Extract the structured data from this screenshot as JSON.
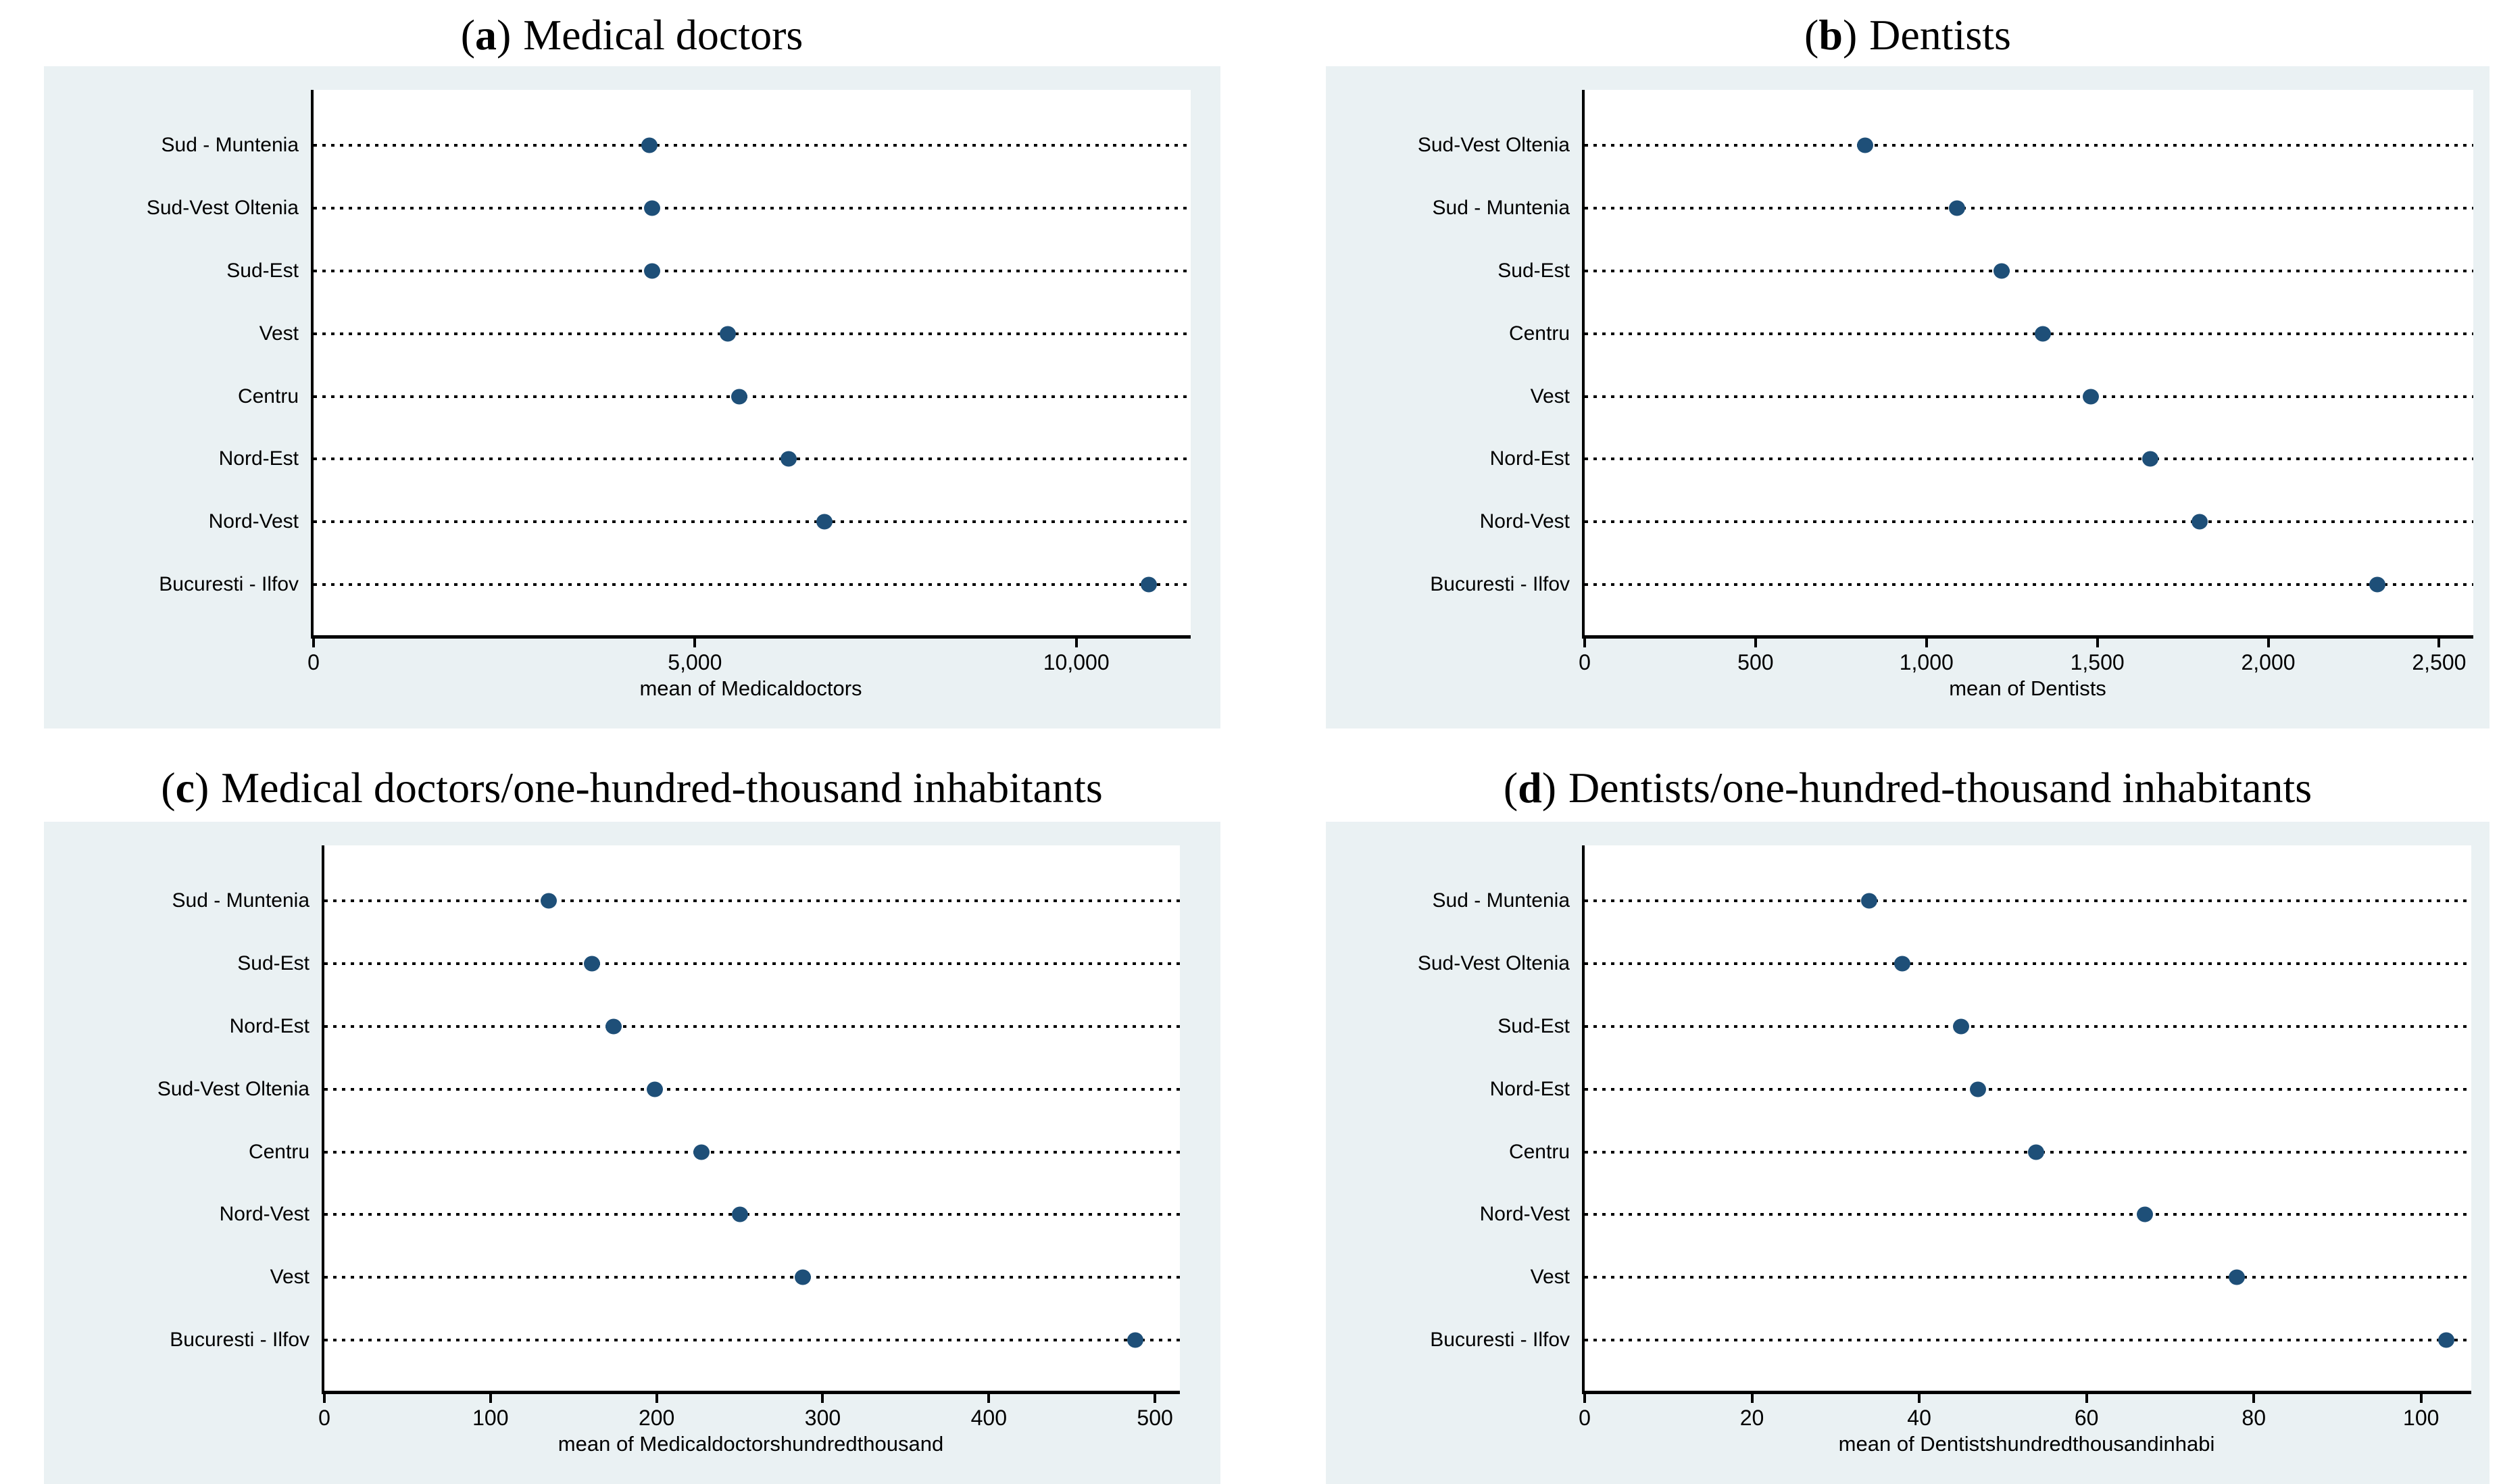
{
  "colors": {
    "panel_bg": "#eaf1f3",
    "plot_bg": "#ffffff",
    "dot": "#1e4f78",
    "axis": "#000000",
    "text": "#000000"
  },
  "chart_data": [
    {
      "id": "a",
      "type": "scatter",
      "title": "(a) Medical doctors",
      "title_open": "(",
      "title_letter": "a",
      "title_close": ")",
      "title_text": "Medical doctors",
      "xlabel": "mean of Medicaldoctors",
      "xlim": [
        0,
        11500
      ],
      "grid": "dotted-leader-lines",
      "legend": "none",
      "x_ticks": [
        {
          "value": 0,
          "label": "0"
        },
        {
          "value": 5000,
          "label": "5,000"
        },
        {
          "value": 10000,
          "label": "10,000"
        }
      ],
      "rows": [
        {
          "label": "Sud - Muntenia",
          "value": 4400
        },
        {
          "label": "Sud-Vest Oltenia",
          "value": 4440
        },
        {
          "label": "Sud-Est",
          "value": 4440
        },
        {
          "label": "Vest",
          "value": 5430
        },
        {
          "label": "Centru",
          "value": 5580
        },
        {
          "label": "Nord-Est",
          "value": 6230
        },
        {
          "label": "Nord-Vest",
          "value": 6700
        },
        {
          "label": "Bucuresti - Ilfov",
          "value": 10950
        }
      ]
    },
    {
      "id": "b",
      "type": "scatter",
      "title": "(b) Dentists",
      "title_open": "(",
      "title_letter": "b",
      "title_close": ")",
      "title_text": "Dentists",
      "xlabel": "mean of Dentists",
      "xlim": [
        0,
        2600
      ],
      "grid": "dotted-leader-lines",
      "legend": "none",
      "x_ticks": [
        {
          "value": 0,
          "label": "0"
        },
        {
          "value": 500,
          "label": "500"
        },
        {
          "value": 1000,
          "label": "1,000"
        },
        {
          "value": 1500,
          "label": "1,500"
        },
        {
          "value": 2000,
          "label": "2,000"
        },
        {
          "value": 2500,
          "label": "2,500"
        }
      ],
      "rows": [
        {
          "label": "Sud-Vest Oltenia",
          "value": 820
        },
        {
          "label": "Sud - Muntenia",
          "value": 1090
        },
        {
          "label": "Sud-Est",
          "value": 1220
        },
        {
          "label": "Centru",
          "value": 1340
        },
        {
          "label": "Vest",
          "value": 1480
        },
        {
          "label": "Nord-Est",
          "value": 1655
        },
        {
          "label": "Nord-Vest",
          "value": 1800
        },
        {
          "label": "Bucuresti - Ilfov",
          "value": 2320
        }
      ]
    },
    {
      "id": "c",
      "type": "scatter",
      "title": "(c) Medical doctors/one-hundred-thousand inhabitants",
      "title_open": "(",
      "title_letter": "c",
      "title_close": ")",
      "title_text": "Medical doctors/one-hundred-thousand inhabitants",
      "xlabel": "mean of Medicaldoctorshundredthousand",
      "xlim": [
        0,
        515
      ],
      "grid": "dotted-leader-lines",
      "legend": "none",
      "x_ticks": [
        {
          "value": 0,
          "label": "0"
        },
        {
          "value": 100,
          "label": "100"
        },
        {
          "value": 200,
          "label": "200"
        },
        {
          "value": 300,
          "label": "300"
        },
        {
          "value": 400,
          "label": "400"
        },
        {
          "value": 500,
          "label": "500"
        }
      ],
      "rows": [
        {
          "label": "Sud - Muntenia",
          "value": 135
        },
        {
          "label": "Sud-Est",
          "value": 161
        },
        {
          "label": "Nord-Est",
          "value": 174
        },
        {
          "label": "Sud-Vest Oltenia",
          "value": 199
        },
        {
          "label": "Centru",
          "value": 227
        },
        {
          "label": "Nord-Vest",
          "value": 250
        },
        {
          "label": "Vest",
          "value": 288
        },
        {
          "label": "Bucuresti - Ilfov",
          "value": 488
        }
      ]
    },
    {
      "id": "d",
      "type": "scatter",
      "title": "(d) Dentists/one-hundred-thousand inhabitants",
      "title_open": "(",
      "title_letter": "d",
      "title_close": ")",
      "title_text": "Dentists/one-hundred-thousand inhabitants",
      "xlabel": "mean of Dentistshundredthousandinhabi",
      "xlim": [
        0,
        106
      ],
      "grid": "dotted-leader-lines",
      "legend": "none",
      "x_ticks": [
        {
          "value": 0,
          "label": "0"
        },
        {
          "value": 20,
          "label": "20"
        },
        {
          "value": 40,
          "label": "40"
        },
        {
          "value": 60,
          "label": "60"
        },
        {
          "value": 80,
          "label": "80"
        },
        {
          "value": 100,
          "label": "100"
        }
      ],
      "rows": [
        {
          "label": "Sud - Muntenia",
          "value": 34
        },
        {
          "label": "Sud-Vest Oltenia",
          "value": 38
        },
        {
          "label": "Sud-Est",
          "value": 45
        },
        {
          "label": "Nord-Est",
          "value": 47
        },
        {
          "label": "Centru",
          "value": 54
        },
        {
          "label": "Nord-Vest",
          "value": 67
        },
        {
          "label": "Vest",
          "value": 78
        },
        {
          "label": "Bucuresti - Ilfov",
          "value": 103
        }
      ]
    }
  ]
}
